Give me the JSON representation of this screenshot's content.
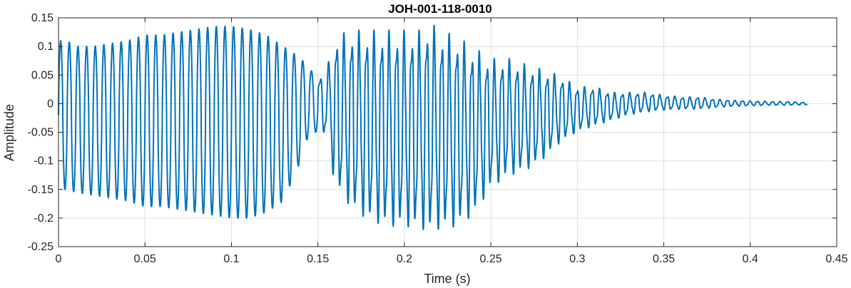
{
  "chart_data": {
    "type": "line",
    "title": "JOH-001-118-0010",
    "xlabel": "Time (s)",
    "ylabel": "Amplitude",
    "xlim": [
      0,
      0.45
    ],
    "ylim": [
      -0.25,
      0.15
    ],
    "xticks": [
      0,
      0.05,
      0.1,
      0.15,
      0.2,
      0.25,
      0.3,
      0.35,
      0.4,
      0.45
    ],
    "xtick_labels": [
      "0",
      "0.05",
      "0.1",
      "0.15",
      "0.2",
      "0.25",
      "0.3",
      "0.35",
      "0.4",
      "0.45"
    ],
    "yticks": [
      -0.25,
      -0.2,
      -0.15,
      -0.1,
      -0.05,
      0,
      0.05,
      0.1,
      0.15
    ],
    "ytick_labels": [
      "-0.25",
      "-0.2",
      "-0.15",
      "-0.1",
      "-0.05",
      "0",
      "0.05",
      "0.1",
      "0.15"
    ],
    "grid": true,
    "line_color": "#0072BD",
    "series": [
      {
        "x": [
          0,
          0.005,
          0.01,
          0.02,
          0.03,
          0.04,
          0.05,
          0.06,
          0.07,
          0.08,
          0.09,
          0.1,
          0.11,
          0.12,
          0.13,
          0.14,
          0.145,
          0.15,
          0.155,
          0.16,
          0.17,
          0.18,
          0.19,
          0.2,
          0.21,
          0.215,
          0.22,
          0.23,
          0.24,
          0.25,
          0.26,
          0.27,
          0.28,
          0.29,
          0.3,
          0.31,
          0.32,
          0.33,
          0.34,
          0.35,
          0.36,
          0.37,
          0.38,
          0.39,
          0.4,
          0.41,
          0.42,
          0.433
        ],
        "upper": [
          0.11,
          0.11,
          0.1,
          0.1,
          0.105,
          0.11,
          0.12,
          0.12,
          0.125,
          0.13,
          0.135,
          0.135,
          0.13,
          0.12,
          0.1,
          0.08,
          0.06,
          0.05,
          0.06,
          0.12,
          0.13,
          0.13,
          0.13,
          0.13,
          0.13,
          0.145,
          0.13,
          0.12,
          0.1,
          0.08,
          0.08,
          0.07,
          0.06,
          0.05,
          0.03,
          0.03,
          0.02,
          0.02,
          0.02,
          0.015,
          0.012,
          0.012,
          0.008,
          0.006,
          0.005,
          0.004,
          0.004,
          0.002
        ],
        "lower": [
          -0.15,
          -0.15,
          -0.155,
          -0.16,
          -0.165,
          -0.17,
          -0.18,
          -0.18,
          -0.185,
          -0.19,
          -0.195,
          -0.2,
          -0.2,
          -0.19,
          -0.17,
          -0.1,
          -0.05,
          -0.05,
          -0.06,
          -0.15,
          -0.19,
          -0.21,
          -0.22,
          -0.22,
          -0.225,
          -0.23,
          -0.225,
          -0.22,
          -0.2,
          -0.15,
          -0.13,
          -0.12,
          -0.1,
          -0.07,
          -0.05,
          -0.04,
          -0.03,
          -0.02,
          -0.015,
          -0.012,
          -0.01,
          -0.01,
          -0.007,
          -0.005,
          -0.004,
          -0.003,
          -0.003,
          -0.002
        ],
        "frequency_hz": [
          200,
          200,
          200,
          200,
          200,
          200,
          200,
          200,
          200,
          200,
          200,
          200,
          200,
          200,
          200,
          200,
          200,
          200,
          200,
          230,
          230,
          230,
          230,
          230,
          230,
          230,
          230,
          230,
          230,
          230,
          230,
          230,
          230,
          230,
          230,
          230,
          230,
          230,
          230,
          230,
          230,
          230,
          230,
          230,
          230,
          230,
          230,
          230
        ]
      }
    ]
  }
}
